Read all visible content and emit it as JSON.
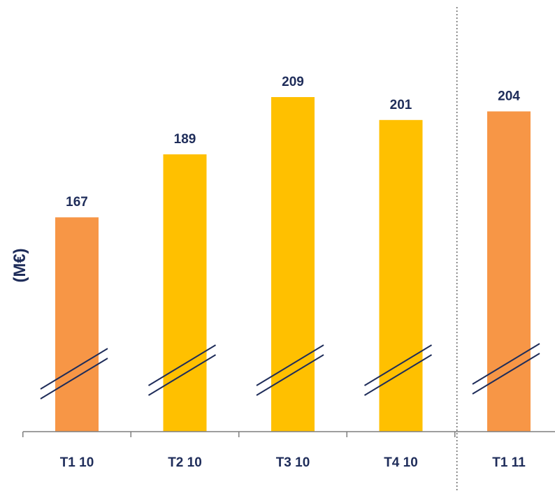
{
  "chart_data": {
    "type": "bar",
    "title": "",
    "xlabel": "",
    "ylabel": "(M€)",
    "categories": [
      "T1 10",
      "T2 10",
      "T3 10",
      "T4 10",
      "T1 11"
    ],
    "values": [
      167,
      189,
      209,
      201,
      204
    ],
    "bar_colors": [
      "#F79646",
      "#FFC000",
      "#FFC000",
      "#FFC000",
      "#F79646"
    ],
    "axis_break": true,
    "separator_after_category": "T4 10",
    "grid": false,
    "legend": "none"
  },
  "colors": {
    "label_text": "#1f2d5a",
    "axis": "#7f7f7f",
    "break_lines": "#1f2d5a",
    "separator": "#555555"
  }
}
